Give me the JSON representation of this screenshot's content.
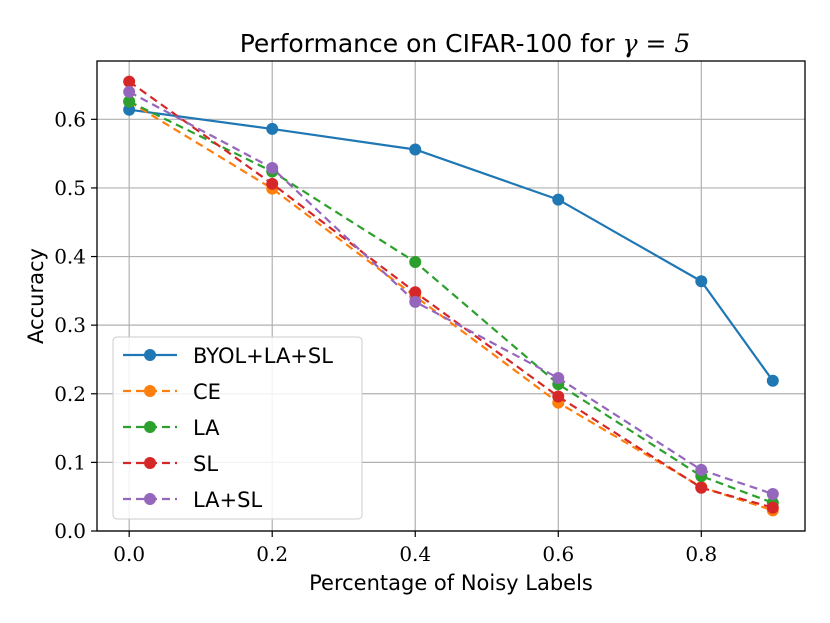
{
  "chart_data": {
    "type": "line",
    "title_prefix": "Performance on CIFAR-100 for ",
    "title_math": "γ = 5",
    "xlabel": "Percentage of Noisy Labels",
    "ylabel": "Accuracy",
    "x": [
      0.0,
      0.2,
      0.4,
      0.6,
      0.8,
      0.9
    ],
    "xlim": [
      -0.045,
      0.945
    ],
    "ylim": [
      0.0,
      0.685
    ],
    "xticks": [
      0.0,
      0.2,
      0.4,
      0.6,
      0.8
    ],
    "xtick_labels": [
      "0.0",
      "0.2",
      "0.4",
      "0.6",
      "0.8"
    ],
    "yticks": [
      0.0,
      0.1,
      0.2,
      0.3,
      0.4,
      0.5,
      0.6
    ],
    "ytick_labels": [
      "0.0",
      "0.1",
      "0.2",
      "0.3",
      "0.4",
      "0.5",
      "0.6"
    ],
    "grid": true,
    "legend_position": "lower-left",
    "series": [
      {
        "name": "BYOL+LA+SL",
        "color": "#1f77b4",
        "dashed": false,
        "values": [
          0.614,
          0.586,
          0.556,
          0.483,
          0.364,
          0.219
        ]
      },
      {
        "name": "CE",
        "color": "#ff7f0e",
        "dashed": true,
        "values": [
          0.626,
          0.499,
          0.342,
          0.187,
          0.064,
          0.03
        ]
      },
      {
        "name": "LA",
        "color": "#2ca02c",
        "dashed": true,
        "values": [
          0.626,
          0.524,
          0.392,
          0.214,
          0.08,
          0.041
        ]
      },
      {
        "name": "SL",
        "color": "#d62728",
        "dashed": true,
        "values": [
          0.655,
          0.506,
          0.348,
          0.196,
          0.063,
          0.034
        ]
      },
      {
        "name": "LA+SL",
        "color": "#9467bd",
        "dashed": true,
        "values": [
          0.64,
          0.529,
          0.334,
          0.223,
          0.089,
          0.054
        ]
      }
    ]
  }
}
